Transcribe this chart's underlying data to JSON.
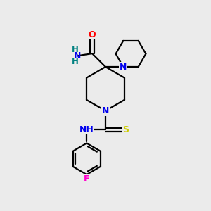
{
  "bg_color": "#ebebeb",
  "atom_colors": {
    "N": "#0000ee",
    "O": "#ff0000",
    "S": "#cccc00",
    "F": "#ff00cc",
    "C": "#000000",
    "H": "#008080"
  },
  "bond_color": "#000000",
  "bond_width": 1.6,
  "figsize": [
    3.0,
    3.0
  ],
  "dpi": 100
}
